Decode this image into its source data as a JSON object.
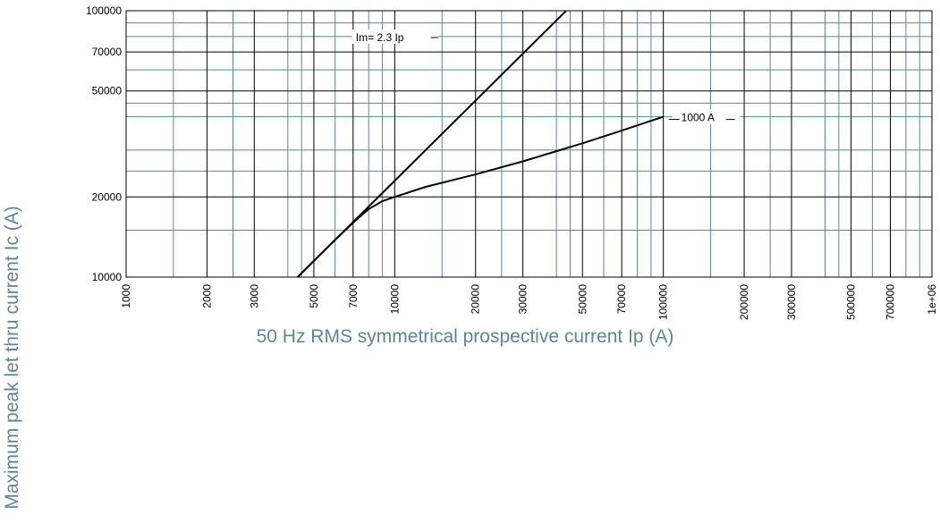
{
  "chart_data": {
    "type": "line",
    "xlabel": "50 Hz RMS symmetrical prospective current Ip (A)",
    "ylabel": "Maximum peak let thru current Ic (A)",
    "xscale": "log",
    "yscale": "log",
    "xlim": [
      1000,
      1000000
    ],
    "ylim": [
      10000,
      100000
    ],
    "xticks": [
      1000,
      2000,
      3000,
      5000,
      7000,
      10000,
      20000,
      30000,
      50000,
      70000,
      100000,
      200000,
      300000,
      500000,
      700000,
      {
        "value": 1000000,
        "label": "1e+06"
      }
    ],
    "yticks": [
      10000,
      20000,
      50000,
      70000,
      100000
    ],
    "minor_xticks": [
      1500,
      2500,
      4000,
      4500,
      6000,
      8000,
      9000,
      15000,
      25000,
      40000,
      45000,
      60000,
      80000,
      90000,
      150000,
      250000,
      400000,
      450000,
      600000,
      800000,
      900000
    ],
    "minor_yticks": [
      15000,
      25000,
      30000,
      40000,
      45000,
      60000,
      80000,
      90000
    ],
    "grid": true,
    "series": [
      {
        "name": "Im= 2.3 Ip",
        "color": "#000000",
        "x": [
          4348,
          43478
        ],
        "values": [
          10000,
          100000
        ]
      },
      {
        "name": "1000 A",
        "color": "#000000",
        "x": [
          4348,
          6000,
          7000,
          8000,
          9000,
          10000,
          13000,
          20000,
          30000,
          50000,
          70000,
          100000
        ],
        "values": [
          10000,
          13800,
          16000,
          18000,
          19300,
          20000,
          21800,
          24300,
          27200,
          31800,
          35500,
          40000
        ]
      }
    ]
  }
}
